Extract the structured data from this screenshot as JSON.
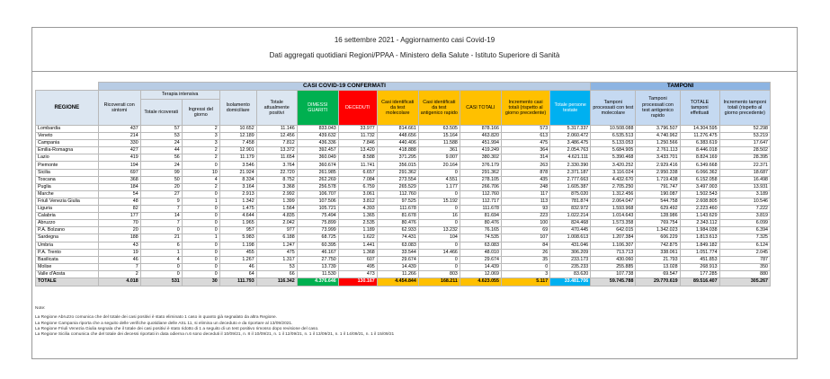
{
  "header": {
    "title": "16 settembre 2021 - Aggiornamento casi Covid-19",
    "subtitle": "Dati aggregati quotidiani Regioni/PPAA - Ministero della Salute - Istituto Superiore di Sanità"
  },
  "table": {
    "group_headers": [
      "CASI COVID-19 CONFERMATI",
      "TAMPONI"
    ],
    "subgroup": "Terapia intensiva",
    "columns": [
      "REGIONE",
      "Ricoverati con sintomi",
      "Totale ricoverati",
      "Ingressi del giorno",
      "Isolamento domiciliare",
      "Totale attualmente positivi",
      "DIMESSI GUARITI",
      "DECEDUTI",
      "Casi identificati da test molecolare",
      "Casi identificati da test antigenico rapido",
      "CASI TOTALI",
      "Incremento casi totali (rispetto al giorno precedente)",
      "Totale persone testate",
      "Tamponi processati con test molecolare",
      "Tamponi processati con test antigenico rapido",
      "TOTALE tamponi effettuati",
      "Incremento tamponi totali (rispetto al giorno precedente)"
    ],
    "rows": [
      [
        "Lombardia",
        "437",
        "57",
        "2",
        "10.652",
        "11.146",
        "833.043",
        "33.977",
        "814.661",
        "63.505",
        "878.166",
        "573",
        "5.317.337",
        "10.508.088",
        "3.796.507",
        "14.304.595",
        "52.298"
      ],
      [
        "Veneto",
        "214",
        "53",
        "3",
        "12.189",
        "12.456",
        "439.632",
        "11.732",
        "448.656",
        "15.164",
        "463.820",
        "613",
        "2.060.472",
        "6.535.513",
        "4.740.962",
        "11.276.475",
        "53.219"
      ],
      [
        "Campania",
        "330",
        "24",
        "3",
        "7.458",
        "7.812",
        "436.336",
        "7.846",
        "440.406",
        "11.588",
        "451.994",
        "475",
        "3.486.475",
        "5.133.053",
        "1.250.566",
        "6.383.619",
        "17.647"
      ],
      [
        "Emilia-Romagna",
        "427",
        "44",
        "2",
        "12.901",
        "13.372",
        "392.457",
        "13.420",
        "418.888",
        "361",
        "419.249",
        "364",
        "2.054.763",
        "5.684.905",
        "2.761.113",
        "8.446.018",
        "28.502"
      ],
      [
        "Lazio",
        "419",
        "56",
        "2",
        "11.179",
        "11.654",
        "360.049",
        "8.588",
        "371.295",
        "9.007",
        "380.302",
        "314",
        "4.621.111",
        "5.390.468",
        "3.433.701",
        "8.824.169",
        "28.395"
      ],
      [
        "Piemonte",
        "194",
        "24",
        "0",
        "3.546",
        "3.764",
        "360.674",
        "11.741",
        "356.015",
        "20.164",
        "376.179",
        "263",
        "2.330.390",
        "3.420.252",
        "2.929.416",
        "6.349.668",
        "22.371"
      ],
      [
        "Sicilia",
        "697",
        "99",
        "10",
        "21.924",
        "22.720",
        "261.985",
        "6.657",
        "291.362",
        "0",
        "291.362",
        "878",
        "2.371.187",
        "3.116.024",
        "2.950.338",
        "6.066.362",
        "18.687"
      ],
      [
        "Toscana",
        "368",
        "50",
        "4",
        "8.334",
        "8.752",
        "262.269",
        "7.084",
        "273.554",
        "4.551",
        "278.105",
        "435",
        "2.777.663",
        "4.432.670",
        "1.719.438",
        "6.152.058",
        "16.498"
      ],
      [
        "Puglia",
        "184",
        "20",
        "2",
        "3.164",
        "3.368",
        "256.578",
        "6.759",
        "265.529",
        "1.177",
        "266.706",
        "248",
        "1.605.387",
        "2.705.250",
        "791.747",
        "3.497.003",
        "13.931"
      ],
      [
        "Marche",
        "54",
        "27",
        "0",
        "2.913",
        "2.992",
        "106.707",
        "3.061",
        "112.760",
        "0",
        "112.760",
        "117",
        "875.020",
        "1.312.456",
        "190.087",
        "1.502.543",
        "3.189"
      ],
      [
        "Friuli Venezia Giulia",
        "48",
        "9",
        "1",
        "1.342",
        "1.399",
        "107.506",
        "3.812",
        "97.525",
        "15.192",
        "112.717",
        "113",
        "781.874",
        "2.064.047",
        "544.758",
        "2.608.805",
        "10.546"
      ],
      [
        "Liguria",
        "82",
        "7",
        "0",
        "1.475",
        "1.564",
        "105.721",
        "4.393",
        "111.678",
        "0",
        "111.678",
        "93",
        "832.972",
        "1.593.968",
        "629.492",
        "2.223.460",
        "7.222"
      ],
      [
        "Calabria",
        "177",
        "14",
        "0",
        "4.644",
        "4.835",
        "75.494",
        "1.365",
        "81.678",
        "16",
        "81.694",
        "223",
        "1.022.214",
        "1.014.643",
        "128.986",
        "1.143.629",
        "3.819"
      ],
      [
        "Abruzzo",
        "70",
        "7",
        "0",
        "1.965",
        "2.042",
        "75.899",
        "2.535",
        "80.476",
        "0",
        "80.476",
        "100",
        "824.468",
        "1.573.358",
        "769.754",
        "2.343.112",
        "6.099"
      ],
      [
        "P.A. Bolzano",
        "20",
        "0",
        "0",
        "957",
        "977",
        "73.999",
        "1.189",
        "62.933",
        "13.232",
        "76.165",
        "69",
        "470.445",
        "642.015",
        "1.342.023",
        "1.984.038",
        "6.394"
      ],
      [
        "Sardegna",
        "188",
        "21",
        "1",
        "5.983",
        "6.188",
        "68.725",
        "1.622",
        "74.431",
        "104",
        "74.535",
        "107",
        "1.008.613",
        "1.207.384",
        "606.229",
        "1.813.613",
        "7.325"
      ],
      [
        "Umbria",
        "43",
        "6",
        "0",
        "1.198",
        "1.247",
        "60.395",
        "1.441",
        "63.083",
        "0",
        "63.083",
        "84",
        "431.046",
        "1.106.307",
        "742.875",
        "1.849.182",
        "6.124"
      ],
      [
        "P.A. Trento",
        "19",
        "1",
        "0",
        "455",
        "475",
        "46.167",
        "1.368",
        "33.544",
        "14.466",
        "48.010",
        "26",
        "306.209",
        "713.713",
        "338.061",
        "1.051.774",
        "2.045"
      ],
      [
        "Basilicata",
        "46",
        "4",
        "0",
        "1.267",
        "1.317",
        "27.750",
        "607",
        "29.674",
        "0",
        "29.674",
        "35",
        "233.173",
        "430.060",
        "21.793",
        "451.853",
        "787"
      ],
      [
        "Molise",
        "7",
        "0",
        "0",
        "46",
        "53",
        "13.739",
        "495",
        "14.439",
        "0",
        "14.439",
        "0",
        "235.233",
        "255.885",
        "13.028",
        "268.913",
        "350"
      ],
      [
        "Valle d'Aosta",
        "2",
        "0",
        "0",
        "64",
        "66",
        "11.530",
        "473",
        "11.266",
        "803",
        "12.069",
        "3",
        "83.620",
        "107.738",
        "69.547",
        "177.285",
        "880"
      ]
    ],
    "total": [
      "TOTALE",
      "4.018",
      "531",
      "30",
      "111.793",
      "116.342",
      "4.376.646",
      "130.167",
      "4.454.844",
      "168.211",
      "4.623.055",
      "5.117",
      "33.481.706",
      "59.745.788",
      "29.770.619",
      "89.516.407",
      "305.267"
    ]
  },
  "notes": {
    "title": "Note:",
    "lines": [
      "La Regione Abruzzo comunica che del totale dei casi positivi è stato eliminato 1 caso in quanto già segnalato da altra Regione.",
      "La Regione Campania riporta che a seguito delle verifiche quotidiane delle ASL 11, si elimina un deceduto e da riportare al 13/09/2021.",
      "La Regione Friuli Venezia Giulia segnala che il totale dei casi positivi è stato ridotto di 1 a seguito di un test positivo rimosso dopo revisione del caso.",
      "La Regione Sicilia comunica che del totale dei decessi riportati in data odierna n.6 sono deceduti il 10/09/21, n. 8 il 10/09/21, n. 1 il 12/09/21, n. 1 il 13/09/21, n. 1 il 14/09/21, n. 1 il 15/09/21"
    ]
  }
}
